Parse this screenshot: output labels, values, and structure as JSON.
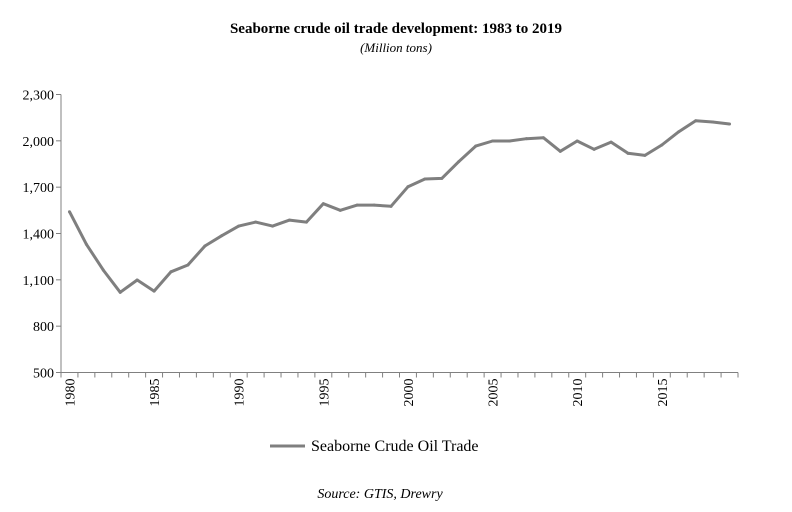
{
  "chart_data": {
    "type": "line",
    "title": "Seaborne crude oil trade development: 1983 to 2019",
    "subtitle": "(Million tons)",
    "source": "Source: GTIS, Drewry",
    "xlabel": "",
    "ylabel": "",
    "ylim": [
      500,
      2300
    ],
    "yticks": [
      500,
      800,
      1100,
      1400,
      1700,
      2000,
      2300
    ],
    "ytick_labels": [
      "500",
      "800",
      "1,100",
      "1,400",
      "1,700",
      "2,000",
      "2,300"
    ],
    "xtick_labels": [
      "1980",
      "1985",
      "1990",
      "1995",
      "2000",
      "2005",
      "2010",
      "2015"
    ],
    "grid": false,
    "legend": "bottom",
    "x": [
      1980,
      1981,
      1982,
      1983,
      1984,
      1985,
      1986,
      1987,
      1988,
      1989,
      1990,
      1991,
      1992,
      1993,
      1994,
      1995,
      1996,
      1997,
      1998,
      1999,
      2000,
      2001,
      2002,
      2003,
      2004,
      2005,
      2006,
      2007,
      2008,
      2009,
      2010,
      2011,
      2012,
      2013,
      2014,
      2015,
      2016,
      2017,
      2018,
      2019
    ],
    "series": [
      {
        "name": "Seaborne Crude Oil Trade",
        "color": "#7f7f7f",
        "values": [
          1541,
          1330,
          1163,
          1019,
          1099,
          1027,
          1152,
          1196,
          1319,
          1386,
          1448,
          1474,
          1448,
          1487,
          1474,
          1593,
          1550,
          1584,
          1584,
          1576,
          1703,
          1753,
          1757,
          1865,
          1966,
          1999,
          1999,
          2014,
          2020,
          1932,
          1999,
          1945,
          1992,
          1919,
          1906,
          1973,
          2059,
          2130,
          2122,
          2109
        ]
      }
    ]
  }
}
